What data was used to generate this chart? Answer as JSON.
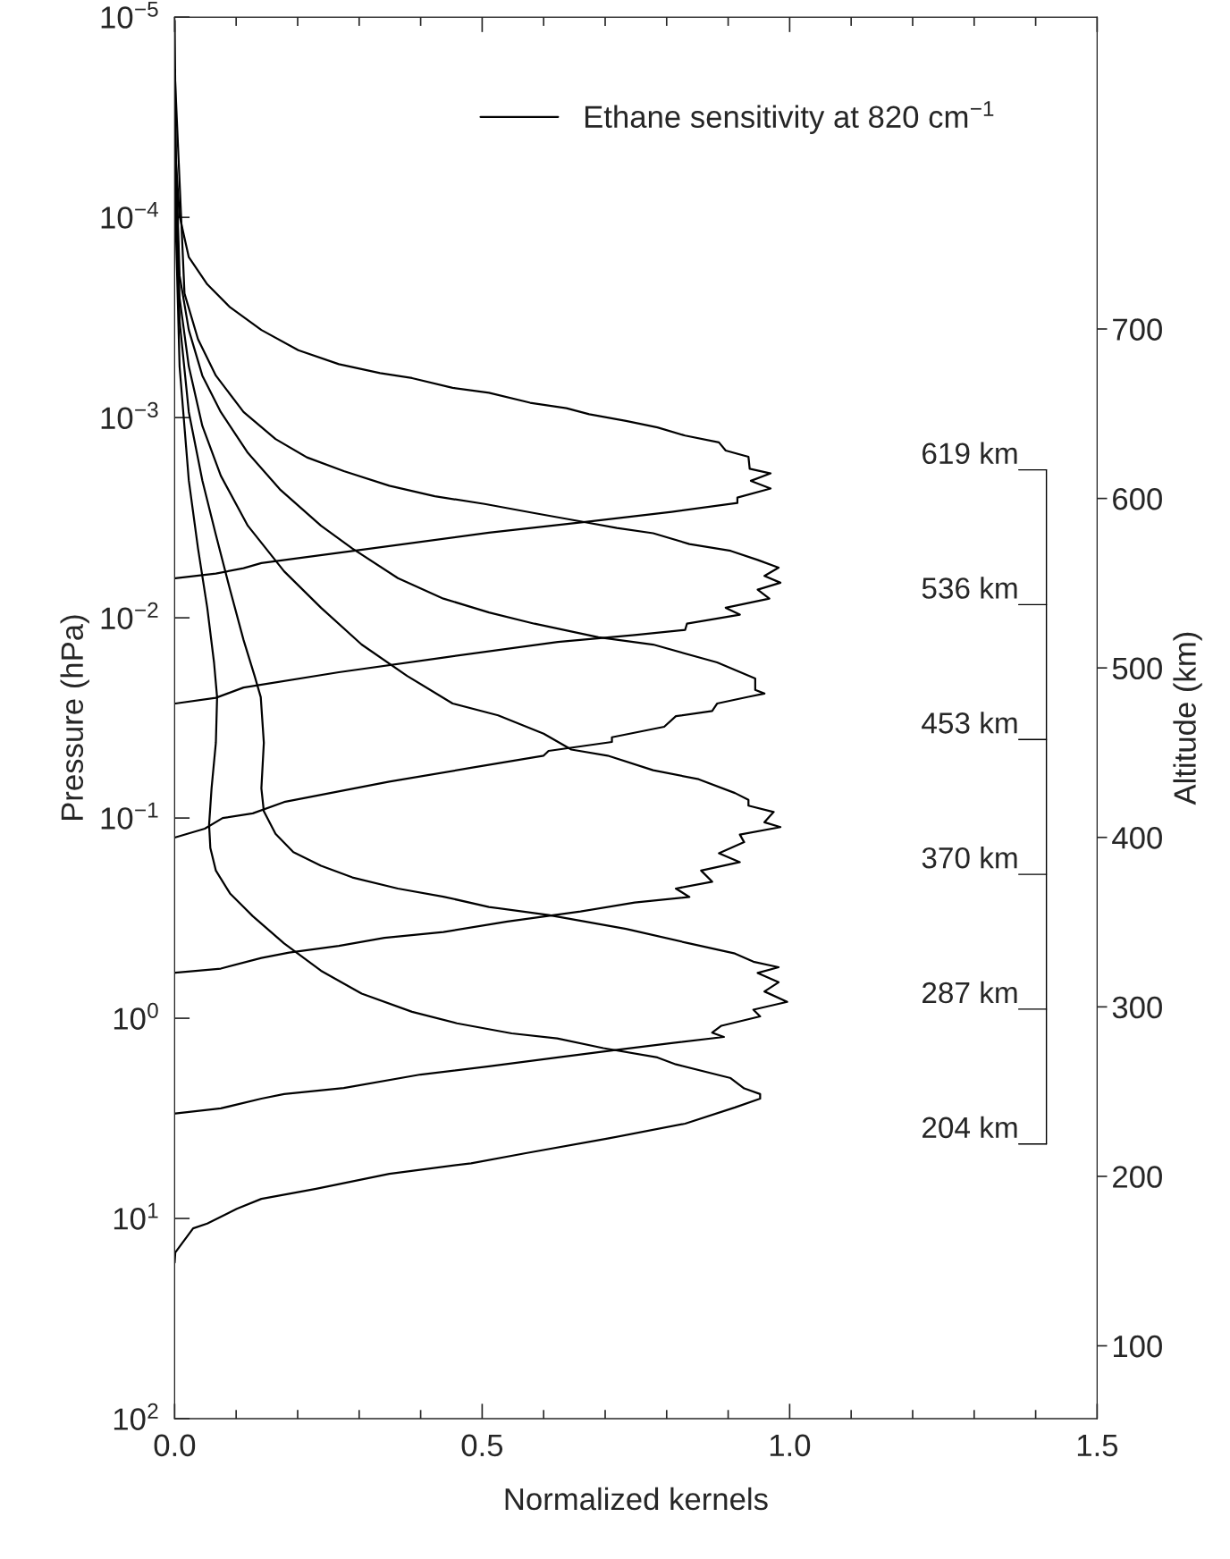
{
  "chart_data": {
    "type": "line",
    "xlabel": "Normalized kernels",
    "ylabel": "Pressure (hPa)",
    "y2label": "Altitude (km)",
    "log": "y",
    "grid": false,
    "legend": "top right",
    "marker": "none",
    "line_style": "solid",
    "xlim": [
      0,
      1.5
    ],
    "ylim": [
      100,
      1e-05
    ],
    "xticks": [
      {
        "value": 0,
        "label": "0.0"
      },
      {
        "value": 0.1,
        "label": null
      },
      {
        "value": 0.2,
        "label": null
      },
      {
        "value": 0.3,
        "label": null
      },
      {
        "value": 0.4,
        "label": null
      },
      {
        "value": 0.5,
        "label": "0.5"
      },
      {
        "value": 0.6,
        "label": null
      },
      {
        "value": 0.7,
        "label": null
      },
      {
        "value": 0.8,
        "label": null
      },
      {
        "value": 0.9,
        "label": null
      },
      {
        "value": 1.0,
        "label": "1.0"
      },
      {
        "value": 1.1,
        "label": null
      },
      {
        "value": 1.2,
        "label": null
      },
      {
        "value": 1.3,
        "label": null
      },
      {
        "value": 1.4,
        "label": null
      },
      {
        "value": 1.5,
        "label": "1.5"
      }
    ],
    "yticks": [
      {
        "value": 1e-05,
        "label": "10$^{−5}$"
      },
      {
        "value": 0.0001,
        "label": "10$^{−4}$"
      },
      {
        "value": 0.001,
        "label": "10$^{−3}$"
      },
      {
        "value": 0.01,
        "label": "10$^{−2}$"
      },
      {
        "value": 0.1,
        "label": "10$^{−1}$"
      },
      {
        "value": 1,
        "label": "10$^{0}$"
      },
      {
        "value": 10,
        "label": "10$^{1}$"
      },
      {
        "value": 100,
        "label": "10$^{2}$"
      }
    ],
    "y2lim": [
      57,
      884
    ],
    "y2ticks": [
      100,
      200,
      300,
      400,
      500,
      600,
      700
    ],
    "annotations": [
      "619 km",
      "536 km",
      "453 km",
      "370 km",
      "287 km",
      "204 km"
    ],
    "series": [
      {
        "name": "Ethane sensitivity at 820 cm$^{−1}$",
        "color": "#000000",
        "x": [
          0,
          0.002,
          0.008,
          0.023,
          0.053,
          0.09,
          0.141,
          0.201,
          0.267,
          0.334,
          0.386,
          0.452,
          0.511,
          0.578,
          0.637,
          0.674,
          0.734,
          0.785,
          0.83,
          0.885,
          0.896,
          0.933,
          0.935,
          0.969,
          0.937,
          0.969,
          0.915,
          0.915,
          0.808,
          0.674,
          0.511,
          0.319,
          0.141,
          0.112,
          0.067,
          0.001
        ],
        "values": [
          1.04e-05,
          5.25e-05,
          9.84e-05,
          0.000158,
          0.000216,
          0.000281,
          0.000365,
          0.000461,
          0.000541,
          0.0006,
          0.000635,
          0.00071,
          0.000752,
          0.000843,
          0.000897,
          0.000962,
          0.00104,
          0.00112,
          0.00123,
          0.00133,
          0.00146,
          0.00157,
          0.0018,
          0.0019,
          0.00207,
          0.00226,
          0.00251,
          0.00267,
          0.00296,
          0.0033,
          0.00376,
          0.00451,
          0.00533,
          0.00565,
          0.00601,
          0.00634
        ]
      },
      {
        "color": "#000000",
        "x": [
          0,
          0.016,
          0.038,
          0.067,
          0.112,
          0.164,
          0.215,
          0.275,
          0.349,
          0.423,
          0.504,
          0.585,
          0.66,
          0.719,
          0.778,
          0.837,
          0.904,
          0.948,
          0.982,
          0.959,
          0.985,
          0.948,
          0.967,
          0.896,
          0.919,
          0.833,
          0.83,
          0.748,
          0.623,
          0.437,
          0.267,
          0.112,
          0.067,
          0.001
        ],
        "values": [
          1.84e-05,
          0.00024,
          0.000406,
          0.000617,
          0.000938,
          0.00128,
          0.00158,
          0.00185,
          0.00219,
          0.00247,
          0.0027,
          0.003,
          0.0033,
          0.00356,
          0.00378,
          0.00428,
          0.00463,
          0.00514,
          0.00562,
          0.00618,
          0.00668,
          0.00723,
          0.00802,
          0.00891,
          0.00964,
          0.0107,
          0.0115,
          0.0122,
          0.0132,
          0.0158,
          0.0187,
          0.0223,
          0.0251,
          0.0268
        ]
      },
      {
        "color": "#000000",
        "x": [
          0,
          0.008,
          0.023,
          0.045,
          0.075,
          0.119,
          0.171,
          0.238,
          0.289,
          0.363,
          0.437,
          0.511,
          0.585,
          0.689,
          0.778,
          0.882,
          0.944,
          0.944,
          0.959,
          0.933,
          0.882,
          0.874,
          0.815,
          0.796,
          0.711,
          0.711,
          0.608,
          0.6,
          0.482,
          0.349,
          0.178,
          0.127,
          0.078,
          0.049,
          0.001
        ],
        "values": [
          3.11e-05,
          0.000195,
          0.000365,
          0.000617,
          0.000938,
          0.0015,
          0.00228,
          0.00347,
          0.00451,
          0.00634,
          0.00802,
          0.0094,
          0.0107,
          0.0125,
          0.0136,
          0.0167,
          0.0201,
          0.0229,
          0.0239,
          0.0248,
          0.0268,
          0.0292,
          0.031,
          0.035,
          0.0395,
          0.0417,
          0.0462,
          0.0488,
          0.0561,
          0.0658,
          0.0832,
          0.0948,
          0.1,
          0.113,
          0.125
        ]
      },
      {
        "color": "#000000",
        "x": [
          0,
          0.008,
          0.023,
          0.045,
          0.075,
          0.119,
          0.178,
          0.238,
          0.304,
          0.378,
          0.452,
          0.526,
          0.6,
          0.645,
          0.704,
          0.778,
          0.852,
          0.911,
          0.933,
          0.933,
          0.974,
          0.959,
          0.985,
          0.919,
          0.926,
          0.885,
          0.919,
          0.856,
          0.874,
          0.815,
          0.837,
          0.748,
          0.66,
          0.541,
          0.437,
          0.341,
          0.267,
          0.186,
          0.141,
          0.075,
          0.001
        ],
        "values": [
          4.04e-05,
          0.000253,
          0.000555,
          0.0011,
          0.00195,
          0.00347,
          0.00586,
          0.00891,
          0.0136,
          0.0195,
          0.0268,
          0.0307,
          0.0379,
          0.0455,
          0.0488,
          0.0577,
          0.064,
          0.075,
          0.0811,
          0.0867,
          0.0933,
          0.105,
          0.111,
          0.121,
          0.132,
          0.15,
          0.166,
          0.183,
          0.208,
          0.225,
          0.248,
          0.264,
          0.293,
          0.329,
          0.371,
          0.397,
          0.435,
          0.47,
          0.5,
          0.565,
          0.592
        ]
      },
      {
        "color": "#000000",
        "x": [
          0,
          0.008,
          0.023,
          0.045,
          0.067,
          0.09,
          0.112,
          0.13,
          0.14,
          0.145,
          0.141,
          0.145,
          0.164,
          0.193,
          0.238,
          0.289,
          0.363,
          0.437,
          0.511,
          0.608,
          0.734,
          0.837,
          0.911,
          0.941,
          0.982,
          0.948,
          0.982,
          0.959,
          0.996,
          0.941,
          0.952,
          0.889,
          0.874,
          0.893,
          0.808,
          0.711,
          0.623,
          0.511,
          0.4,
          0.275,
          0.178,
          0.141,
          0.075,
          0.001
        ],
        "values": [
          5.25e-05,
          0.000329,
          0.000938,
          0.00206,
          0.00385,
          0.00723,
          0.0129,
          0.0195,
          0.0249,
          0.0421,
          0.0711,
          0.0925,
          0.12,
          0.148,
          0.173,
          0.198,
          0.225,
          0.247,
          0.278,
          0.305,
          0.358,
          0.423,
          0.475,
          0.522,
          0.556,
          0.594,
          0.661,
          0.735,
          0.828,
          0.906,
          0.979,
          1.09,
          1.18,
          1.24,
          1.33,
          1.45,
          1.57,
          1.74,
          1.91,
          2.23,
          2.39,
          2.52,
          2.82,
          2.99
        ]
      },
      {
        "color": "#000000",
        "x": [
          0,
          0.008,
          0.023,
          0.038,
          0.053,
          0.064,
          0.069,
          0.067,
          0.06,
          0.056,
          0.058,
          0.067,
          0.09,
          0.127,
          0.178,
          0.238,
          0.304,
          0.386,
          0.459,
          0.548,
          0.622,
          0.697,
          0.785,
          0.815,
          0.904,
          0.926,
          0.952,
          0.952,
          0.911,
          0.83,
          0.704,
          0.571,
          0.482,
          0.349,
          0.23,
          0.141,
          0.101,
          0.053,
          0.03,
          0.001,
          0
        ],
        "values": [
          6.82e-05,
          0.000555,
          0.00206,
          0.00451,
          0.00891,
          0.0167,
          0.0249,
          0.0421,
          0.0711,
          0.108,
          0.141,
          0.183,
          0.238,
          0.309,
          0.423,
          0.579,
          0.753,
          0.929,
          1.06,
          1.19,
          1.26,
          1.41,
          1.57,
          1.7,
          1.99,
          2.24,
          2.39,
          2.52,
          2.79,
          3.36,
          3.99,
          4.72,
          5.3,
          5.98,
          7.11,
          7.98,
          8.95,
          10.6,
          11.2,
          14.8,
          16.6
        ]
      }
    ]
  }
}
